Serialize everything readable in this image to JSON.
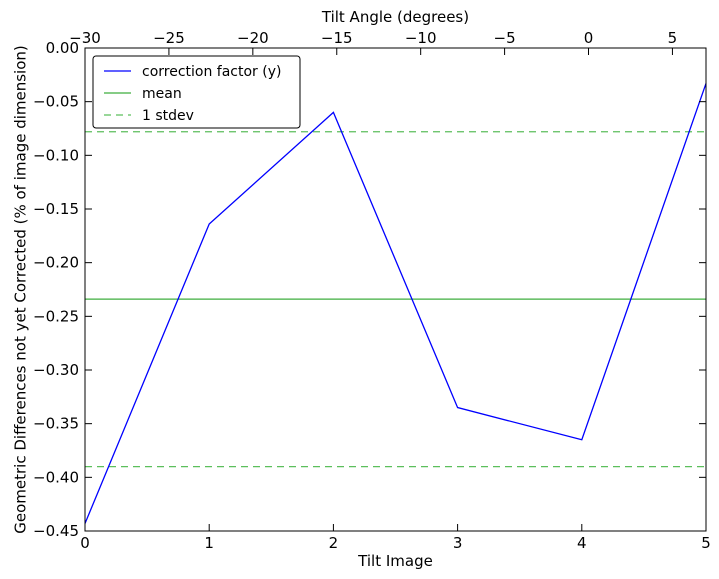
{
  "chart_data": {
    "type": "line",
    "xlabel": "Tilt Image",
    "ylabel": "Geometric Differences not yet Corrected (% of image dimension)",
    "top_xlabel": "Tilt Angle (degrees)",
    "xlim": [
      0,
      5
    ],
    "ylim": [
      -0.45,
      0.0
    ],
    "top_xlim": [
      -30,
      7
    ],
    "x_ticks": [
      0,
      1,
      2,
      3,
      4,
      5
    ],
    "x_tick_labels": [
      "0",
      "1",
      "2",
      "3",
      "4",
      "5"
    ],
    "y_ticks": [
      0.0,
      -0.05,
      -0.1,
      -0.15,
      -0.2,
      -0.25,
      -0.3,
      -0.35,
      -0.4,
      -0.45
    ],
    "y_tick_labels": [
      "0.00",
      "−0.05",
      "−0.10",
      "−0.15",
      "−0.20",
      "−0.25",
      "−0.30",
      "−0.35",
      "−0.40",
      "−0.45"
    ],
    "top_ticks": [
      -30,
      -25,
      -20,
      -15,
      -10,
      -5,
      0,
      5
    ],
    "top_tick_labels": [
      "−30",
      "−25",
      "−20",
      "−15",
      "−10",
      "−5",
      "0",
      "5"
    ],
    "series": [
      {
        "name": "correction factor (y)",
        "color": "#0000ff",
        "style": "solid",
        "x": [
          0,
          1,
          2,
          3,
          4,
          5
        ],
        "y": [
          -0.443,
          -0.164,
          -0.06,
          -0.335,
          -0.365,
          -0.033
        ]
      }
    ],
    "reference_lines": [
      {
        "name": "mean",
        "value": -0.234,
        "color": "#3fae3f",
        "style": "solid"
      },
      {
        "name": "1 stdev",
        "value": -0.078,
        "color": "#5cbf5c",
        "style": "dashed"
      },
      {
        "name": "",
        "value": -0.39,
        "color": "#5cbf5c",
        "style": "dashed"
      }
    ],
    "legend": {
      "position": "top-left",
      "entries": [
        {
          "label": "correction factor (y)",
          "color": "#0000ff",
          "style": "solid"
        },
        {
          "label": "mean",
          "color": "#3fae3f",
          "style": "solid"
        },
        {
          "label": "1 stdev",
          "color": "#5cbf5c",
          "style": "dashed"
        }
      ]
    },
    "grid": false
  }
}
